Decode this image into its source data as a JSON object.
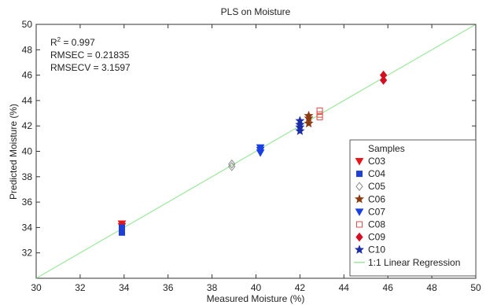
{
  "chart_data": {
    "type": "scatter",
    "title": "PLS on Moisture",
    "xlabel": "Measured Moisture (%)",
    "ylabel": "Predicted Moisture (%)",
    "xlim": [
      30,
      50
    ],
    "ylim": [
      30,
      50
    ],
    "xticks": [
      30,
      32,
      34,
      36,
      38,
      40,
      42,
      44,
      46,
      48,
      50
    ],
    "yticks": [
      32,
      34,
      36,
      38,
      40,
      42,
      44,
      46,
      48,
      50
    ],
    "grid": false,
    "legend_title": "Samples",
    "legend_position": "bottom-right",
    "stats": {
      "r2_prefix": "R",
      "r2_sup": "2",
      "r2_value": " = 0.997",
      "rmsec": "RMSEC = 0.21835",
      "rmsecv": "RMSECV = 3.1597"
    },
    "series": [
      {
        "name": "C03",
        "marker": "triangle-down",
        "color": "#e8151b",
        "filled": true,
        "points": [
          [
            33.9,
            34.3
          ],
          [
            33.9,
            34.1
          ]
        ]
      },
      {
        "name": "C04",
        "marker": "square",
        "color": "#1f3fd6",
        "filled": true,
        "points": [
          [
            33.9,
            33.8
          ],
          [
            33.9,
            33.6
          ],
          [
            33.9,
            34.0
          ]
        ]
      },
      {
        "name": "C05",
        "marker": "diamond",
        "color": "#8a8a8a",
        "filled": false,
        "points": [
          [
            38.9,
            38.8
          ],
          [
            38.9,
            39.0
          ]
        ]
      },
      {
        "name": "C06",
        "marker": "star",
        "color": "#8b3a12",
        "filled": true,
        "points": [
          [
            42.4,
            42.2
          ],
          [
            42.4,
            42.6
          ],
          [
            42.4,
            42.8
          ]
        ]
      },
      {
        "name": "C07",
        "marker": "triangle-down",
        "color": "#1a3fe0",
        "filled": true,
        "points": [
          [
            40.2,
            40.1
          ],
          [
            40.2,
            40.3
          ],
          [
            40.2,
            39.9
          ]
        ]
      },
      {
        "name": "C08",
        "marker": "square",
        "color": "#e34848",
        "filled": false,
        "points": [
          [
            42.9,
            42.7
          ],
          [
            42.9,
            42.9
          ],
          [
            42.9,
            43.2
          ]
        ]
      },
      {
        "name": "C09",
        "marker": "diamond",
        "color": "#d40f23",
        "filled": true,
        "points": [
          [
            45.8,
            45.6
          ],
          [
            45.8,
            46.0
          ]
        ]
      },
      {
        "name": "C10",
        "marker": "star",
        "color": "#1c2fa6",
        "filled": true,
        "points": [
          [
            42.0,
            41.6
          ],
          [
            42.0,
            41.9
          ],
          [
            42.0,
            42.1
          ],
          [
            42.0,
            42.4
          ]
        ]
      }
    ],
    "regression": {
      "name": "1:1 Linear Regression",
      "color": "#9be89b",
      "from": [
        30,
        30
      ],
      "to": [
        50,
        50
      ]
    }
  }
}
